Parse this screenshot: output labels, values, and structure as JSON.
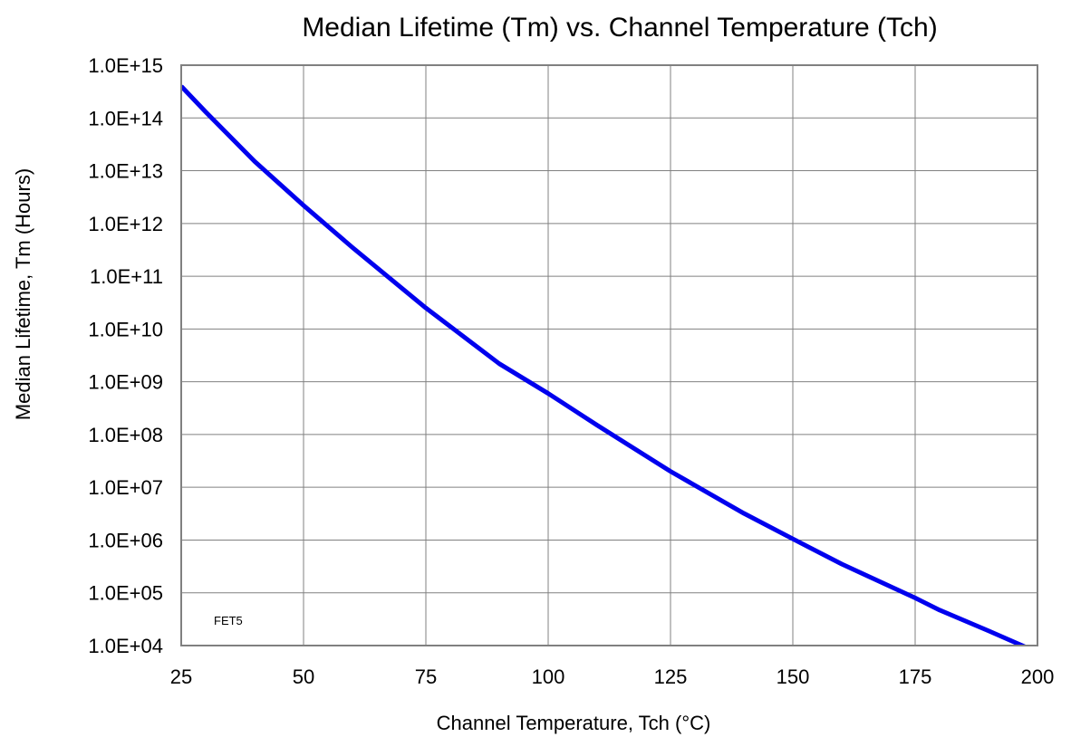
{
  "chart_data": {
    "type": "line",
    "title": "Median Lifetime (Tm) vs. Channel Temperature (Tch)",
    "xlabel": "Channel Temperature, Tch  (°C)",
    "ylabel": "Median Lifetime, Tm  (Hours)",
    "xlim": [
      25,
      200
    ],
    "ylim": [
      10000,
      1000000000000000
    ],
    "yscale": "log",
    "grid": true,
    "x_ticks": [
      "25",
      "50",
      "75",
      "100",
      "125",
      "150",
      "175",
      "200"
    ],
    "y_ticks": [
      "1.0E+04",
      "1.0E+05",
      "1.0E+06",
      "1.0E+07",
      "1.0E+08",
      "1.0E+09",
      "1.0E+10",
      "1.0E+11",
      "1.0E+12",
      "1.0E+13",
      "1.0E+14",
      "1.0E+15"
    ],
    "annotations": [
      "FET5"
    ],
    "series": [
      {
        "color": "#0000ee",
        "x": [
          25,
          30,
          40,
          50,
          60,
          75,
          90,
          100,
          110,
          125,
          140,
          150,
          160,
          175,
          180,
          190,
          198
        ],
        "y": [
          400000000000000.0,
          130000000000000.0,
          15000000000000.0,
          2200000000000.0,
          350000000000.0,
          25000000000.0,
          2200000000.0,
          600000000.0,
          150000000.0,
          20000000.0,
          3200000.0,
          1050000.0,
          350000.0,
          80000.0,
          47000.0,
          19000.0,
          9000.0
        ]
      }
    ]
  }
}
